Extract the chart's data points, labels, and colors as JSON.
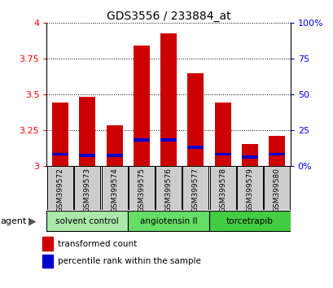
{
  "title": "GDS3556 / 233884_at",
  "samples": [
    "GSM399572",
    "GSM399573",
    "GSM399574",
    "GSM399575",
    "GSM399576",
    "GSM399577",
    "GSM399578",
    "GSM399579",
    "GSM399580"
  ],
  "transformed_counts": [
    3.44,
    3.48,
    3.28,
    3.84,
    3.93,
    3.65,
    3.44,
    3.15,
    3.21
  ],
  "percentile_ranks": [
    8,
    7,
    7,
    18,
    18,
    13,
    8,
    6,
    8
  ],
  "groups": [
    {
      "label": "solvent control",
      "indices": [
        0,
        1,
        2
      ],
      "color": "#aae8aa"
    },
    {
      "label": "angiotensin II",
      "indices": [
        3,
        4,
        5
      ],
      "color": "#66dd66"
    },
    {
      "label": "torcetrapib",
      "indices": [
        6,
        7,
        8
      ],
      "color": "#44cc44"
    }
  ],
  "y_min": 3.0,
  "y_max": 4.0,
  "y_ticks_left": [
    3.0,
    3.25,
    3.5,
    3.75,
    4.0
  ],
  "y_ticks_left_labels": [
    "3",
    "3.25",
    "3.5",
    "3.75",
    "4"
  ],
  "y_ticks_right_vals": [
    0,
    25,
    50,
    75,
    100
  ],
  "y_ticks_right_labels": [
    "0%",
    "25",
    "50",
    "75",
    "100%"
  ],
  "bar_color": "#cc0000",
  "blue_color": "#0000cc",
  "legend_items": [
    "transformed count",
    "percentile rank within the sample"
  ],
  "gray_box_color": "#cccccc"
}
